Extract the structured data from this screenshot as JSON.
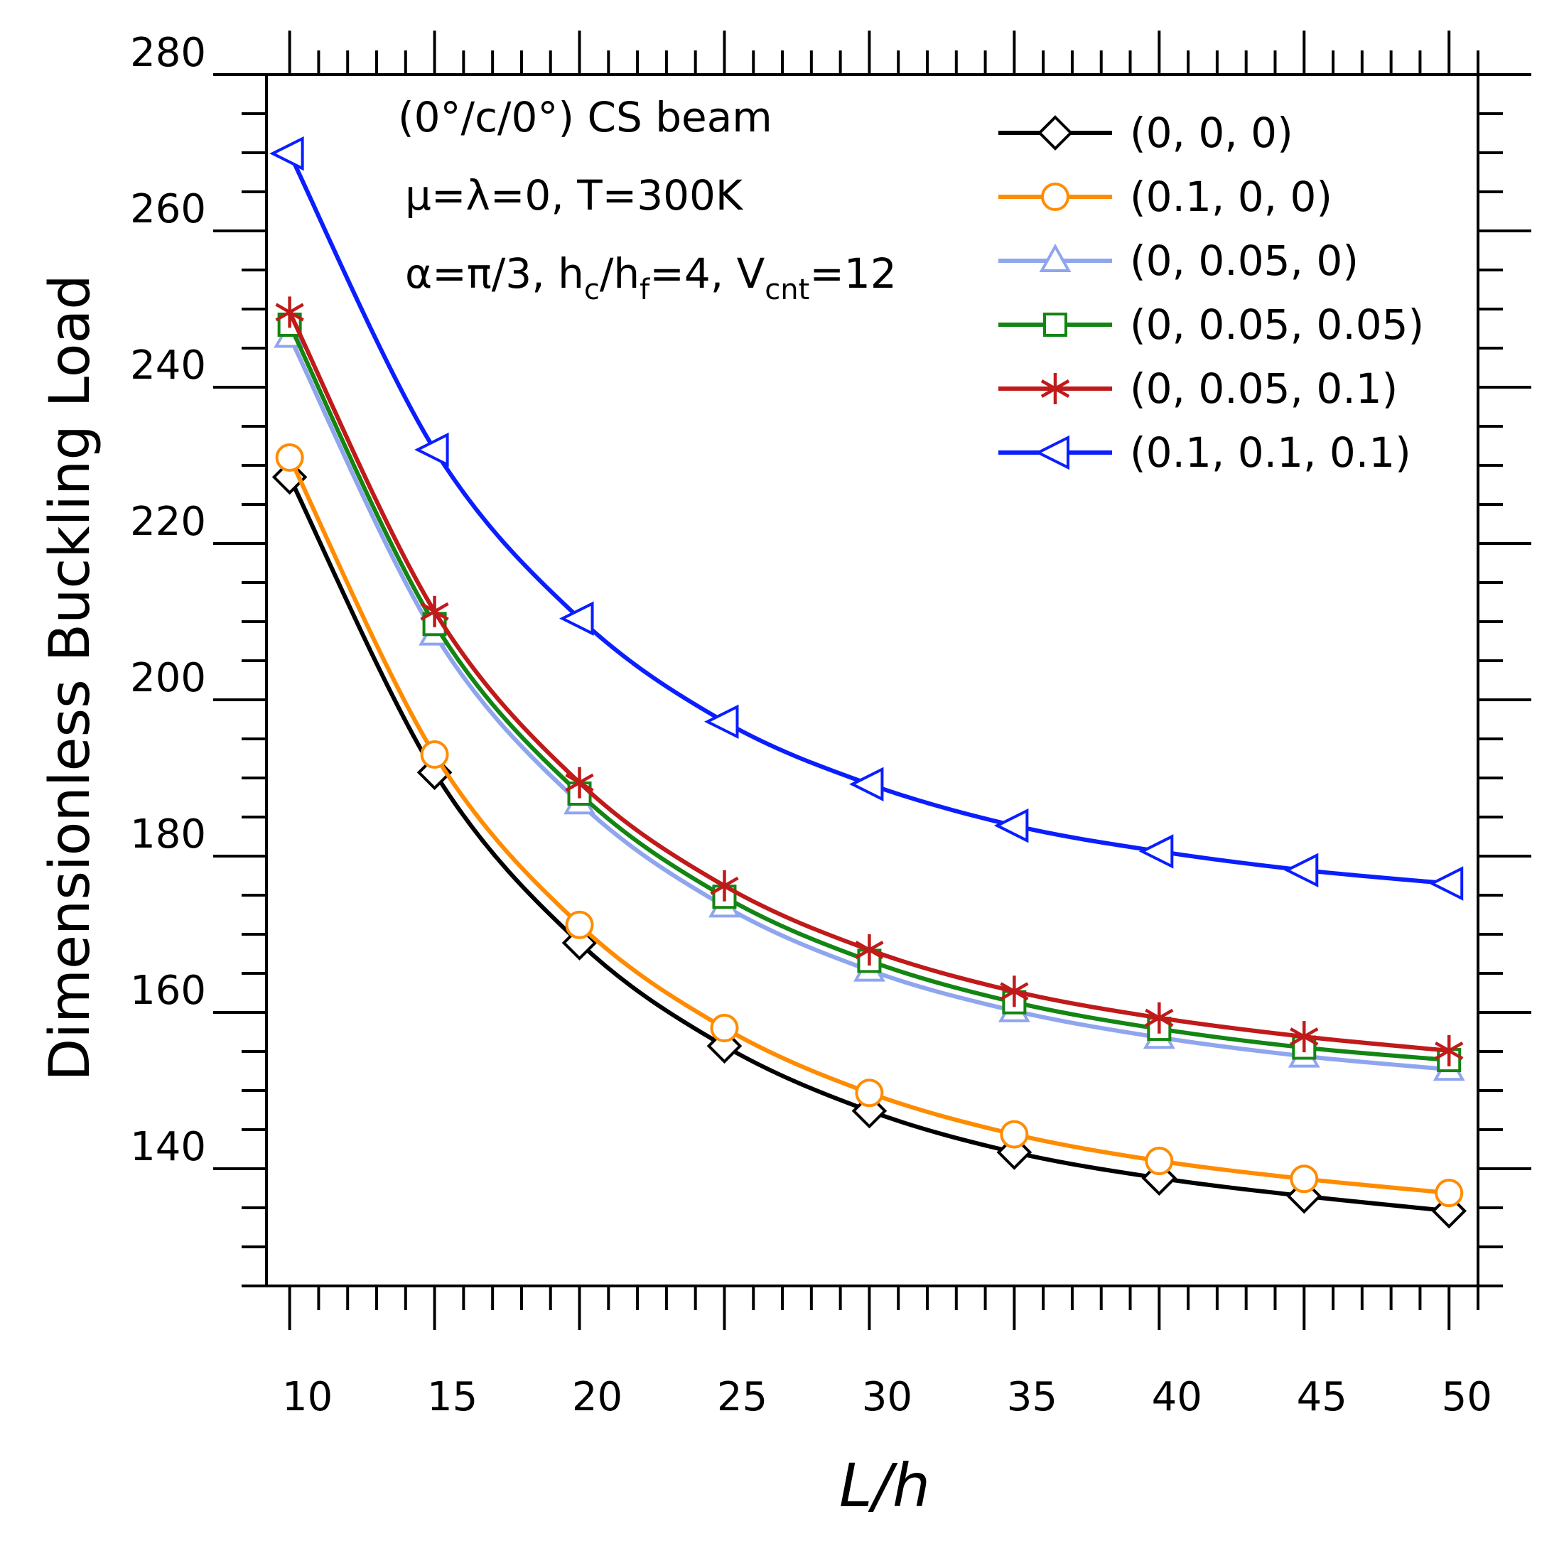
{
  "chart_data": {
    "type": "line",
    "xlabel": "L/h",
    "ylabel": "Dimensionless Buckling Load",
    "xlim": [
      9.2,
      51
    ],
    "ylim": [
      125,
      280
    ],
    "xticks": [
      10,
      15,
      20,
      25,
      30,
      35,
      40,
      45,
      50
    ],
    "yticks": [
      140,
      160,
      180,
      200,
      220,
      240,
      260,
      280
    ],
    "x": [
      10,
      15,
      20,
      25,
      30,
      35,
      40,
      45,
      50
    ],
    "annotations": {
      "line1": "(0°/c/0°) CS beam",
      "line2": "μ=λ=0, T=300K",
      "line3_pre": "α=π/3, h",
      "line3_sub1": "c",
      "line3_mid1": "/h",
      "line3_sub2": "f",
      "line3_mid2": "=4, V",
      "line3_sub3": "cnt",
      "line3_post": "=12"
    },
    "legend_position": "top-right",
    "series": [
      {
        "name": "(0, 0, 0)",
        "color": "#000000",
        "marker": "diamond",
        "values": [
          228.5,
          190.7,
          168.9,
          155.7,
          147.4,
          142.1,
          138.8,
          136.5,
          134.6
        ]
      },
      {
        "name": "(0.1, 0, 0)",
        "color": "#ff8c00",
        "marker": "circle",
        "values": [
          231.0,
          193.0,
          171.2,
          158.0,
          149.7,
          144.4,
          141.0,
          138.7,
          136.9
        ]
      },
      {
        "name": "(0, 0.05, 0)",
        "color": "#8fa5ee",
        "marker": "triangle-up",
        "values": [
          246.5,
          208.4,
          186.8,
          173.6,
          165.4,
          160.2,
          156.8,
          154.4,
          152.7
        ]
      },
      {
        "name": "(0, 0.05, 0.05)",
        "color": "#138513",
        "marker": "square",
        "values": [
          248.0,
          209.7,
          188.0,
          174.8,
          166.6,
          161.3,
          157.9,
          155.5,
          153.9
        ]
      },
      {
        "name": "(0, 0.05, 0.1)",
        "color": "#c01a1a",
        "marker": "asterisk",
        "values": [
          249.6,
          211.3,
          189.4,
          176.2,
          168.0,
          162.7,
          159.3,
          156.9,
          155.1
        ]
      },
      {
        "name": "(0.1, 0.1, 0.1)",
        "color": "#0a1eff",
        "marker": "triangle-left",
        "values": [
          269.9,
          232.0,
          210.4,
          197.2,
          189.2,
          183.9,
          180.6,
          178.2,
          176.5
        ]
      }
    ]
  }
}
